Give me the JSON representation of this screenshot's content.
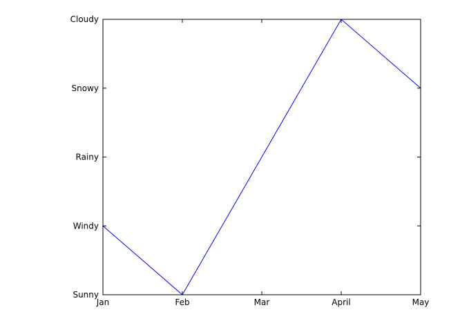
{
  "chart_data": {
    "type": "line",
    "title": "",
    "xlabel": "",
    "ylabel": "",
    "categories": [
      "Jan",
      "Feb",
      "Mar",
      "April",
      "May"
    ],
    "y_categories": [
      "Sunny",
      "Windy",
      "Rainy",
      "Snowy",
      "Cloudy"
    ],
    "series": [
      {
        "color": "#0000ff",
        "values": [
          "Windy",
          "Sunny",
          null,
          "Cloudy",
          "Snowy"
        ]
      }
    ],
    "grid": false,
    "legend": "none"
  }
}
